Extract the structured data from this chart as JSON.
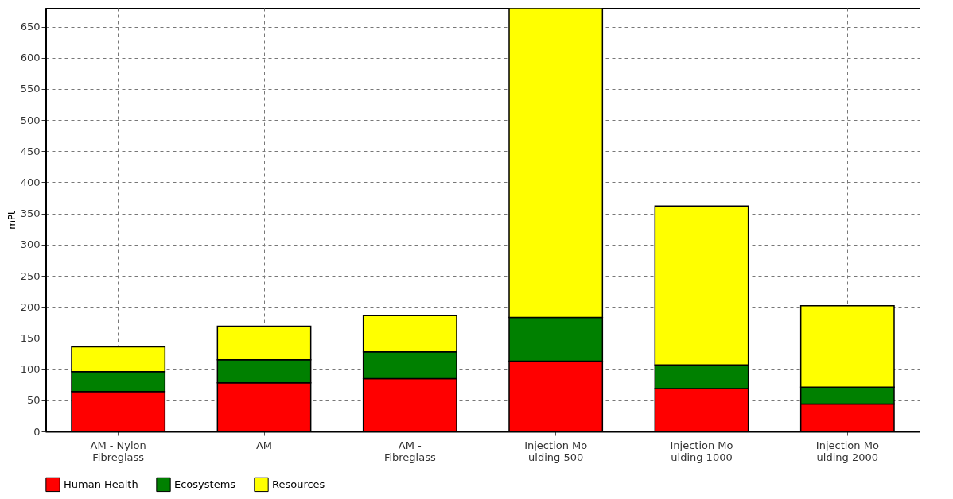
{
  "chart_data": {
    "type": "bar",
    "ylabel": "mPt",
    "categories": [
      "AM - Nylon\nFibreglass",
      "AM",
      "AM -\nFibreglass",
      "Injection Mo\nulding 500",
      "Injection Mo\nulding 1000",
      "Injection Mo\nulding 2000"
    ],
    "stacked": true,
    "ylim": [
      0,
      680
    ],
    "yticks": [
      0,
      50,
      100,
      150,
      200,
      250,
      300,
      350,
      400,
      450,
      500,
      550,
      600,
      650
    ],
    "grid": true,
    "legend": "bottom",
    "series": [
      {
        "name": "Human Health",
        "color": "#ff0000",
        "values": [
          64,
          78,
          85,
          113,
          69,
          44
        ]
      },
      {
        "name": "Ecosystems",
        "color": "#008000",
        "values": [
          32,
          37,
          43,
          70,
          38,
          27
        ]
      },
      {
        "name": "Resources",
        "color": "#ffff00",
        "values": [
          40,
          54,
          58,
          497,
          255,
          131
        ]
      }
    ]
  }
}
